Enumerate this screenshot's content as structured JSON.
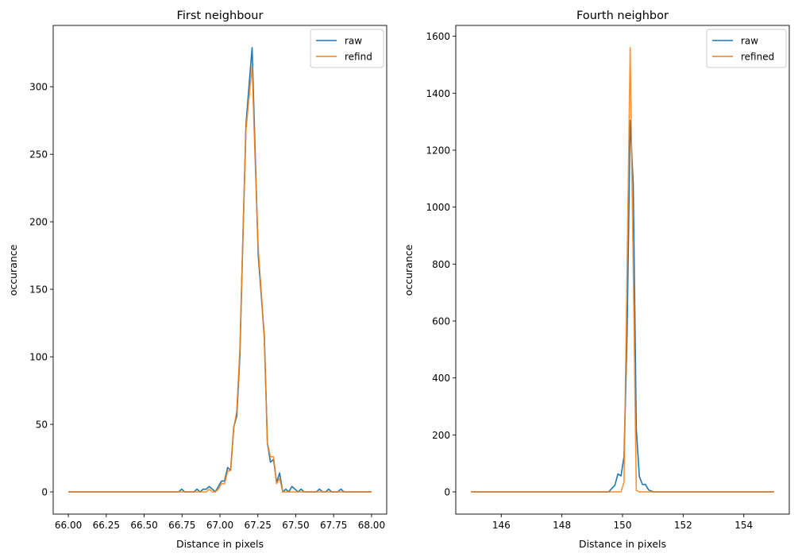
{
  "colors": {
    "raw": "#1f77b4",
    "refined": "#ff7f0e"
  },
  "chart_data": [
    {
      "type": "line",
      "title": "First neighbour",
      "xlabel": "Distance in pixels",
      "ylabel": "occurance",
      "xlim": [
        65.9,
        68.1
      ],
      "ylim": [
        -16.45,
        345.4
      ],
      "x_linspace": {
        "start": 66,
        "stop": 68,
        "num": 100
      },
      "xticks": [
        "66.00",
        "66.25",
        "66.50",
        "66.75",
        "67.00",
        "67.25",
        "67.50",
        "67.75",
        "68.00"
      ],
      "yticks": [
        "0",
        "50",
        "100",
        "150",
        "200",
        "250",
        "300"
      ],
      "grid": false,
      "legend": "top-right",
      "series": [
        {
          "name": "raw",
          "values": [
            0,
            0,
            0,
            0,
            0,
            0,
            0,
            0,
            0,
            0,
            0,
            0,
            0,
            0,
            0,
            0,
            0,
            0,
            0,
            0,
            0,
            0,
            0,
            0,
            0,
            0,
            0,
            0,
            0,
            0,
            0,
            0,
            0,
            0,
            0,
            0,
            0,
            2,
            0,
            0,
            0,
            0,
            2,
            0,
            2,
            2,
            4,
            2,
            0,
            4,
            8,
            8,
            18,
            16,
            48,
            56,
            100,
            188,
            272,
            301,
            329,
            252,
            175,
            145,
            115,
            36,
            22,
            24,
            7,
            14,
            0,
            2,
            0,
            4,
            2,
            0,
            2,
            0,
            0,
            0,
            0,
            0,
            2,
            0,
            0,
            2,
            0,
            0,
            0,
            2,
            0,
            0,
            0,
            0,
            0,
            0,
            0,
            0,
            0,
            0
          ]
        },
        {
          "name": "refind",
          "values": [
            0,
            0,
            0,
            0,
            0,
            0,
            0,
            0,
            0,
            0,
            0,
            0,
            0,
            0,
            0,
            0,
            0,
            0,
            0,
            0,
            0,
            0,
            0,
            0,
            0,
            0,
            0,
            0,
            0,
            0,
            0,
            0,
            0,
            0,
            0,
            0,
            0,
            0,
            0,
            0,
            0,
            0,
            0,
            0,
            0,
            0,
            2,
            0,
            0,
            2,
            6,
            6,
            15,
            16,
            47,
            60,
            105,
            190,
            268,
            292,
            315,
            245,
            180,
            148,
            112,
            36,
            26,
            26,
            6,
            10,
            0,
            0,
            0,
            0,
            0,
            0,
            0,
            0,
            0,
            0,
            0,
            0,
            0,
            0,
            0,
            0,
            0,
            0,
            0,
            0,
            0,
            0,
            0,
            0,
            0,
            0,
            0,
            0,
            0,
            0
          ]
        }
      ]
    },
    {
      "type": "line",
      "title": "Fourth neighbor",
      "xlabel": "Distance in pixels",
      "ylabel": "occurance",
      "xlim": [
        144.5,
        155.5
      ],
      "ylim": [
        -78,
        1638
      ],
      "x_linspace": {
        "start": 145,
        "stop": 155,
        "num": 100
      },
      "xticks": [
        "146",
        "148",
        "150",
        "152",
        "154"
      ],
      "yticks": [
        "0",
        "200",
        "400",
        "600",
        "800",
        "1000",
        "1200",
        "1400",
        "1600"
      ],
      "grid": false,
      "legend": "top-right",
      "series": [
        {
          "name": "raw",
          "values": [
            0,
            0,
            0,
            0,
            0,
            0,
            0,
            0,
            0,
            0,
            0,
            0,
            0,
            0,
            0,
            0,
            0,
            0,
            0,
            0,
            0,
            0,
            0,
            0,
            0,
            0,
            0,
            0,
            0,
            0,
            0,
            0,
            0,
            0,
            0,
            0,
            0,
            0,
            0,
            0,
            0,
            0,
            0,
            0,
            0,
            0,
            12,
            23,
            63,
            56,
            125,
            560,
            1305,
            1080,
            220,
            54,
            26,
            26,
            7,
            2,
            0,
            0,
            0,
            0,
            0,
            0,
            0,
            0,
            0,
            0,
            0,
            0,
            0,
            0,
            0,
            0,
            0,
            0,
            0,
            0,
            0,
            0,
            0,
            0,
            0,
            0,
            0,
            0,
            0,
            0,
            0,
            0,
            0,
            0,
            0,
            0,
            0,
            0,
            0,
            0
          ]
        },
        {
          "name": "refined",
          "values": [
            0,
            0,
            0,
            0,
            0,
            0,
            0,
            0,
            0,
            0,
            0,
            0,
            0,
            0,
            0,
            0,
            0,
            0,
            0,
            0,
            0,
            0,
            0,
            0,
            0,
            0,
            0,
            0,
            0,
            0,
            0,
            0,
            0,
            0,
            0,
            0,
            0,
            0,
            0,
            0,
            0,
            0,
            0,
            0,
            0,
            0,
            0,
            0,
            0,
            0,
            35,
            800,
            1560,
            780,
            5,
            0,
            0,
            0,
            0,
            0,
            0,
            0,
            0,
            0,
            0,
            0,
            0,
            0,
            0,
            0,
            0,
            0,
            0,
            0,
            0,
            0,
            0,
            0,
            0,
            0,
            0,
            0,
            0,
            0,
            0,
            0,
            0,
            0,
            0,
            0,
            0,
            0,
            0,
            0,
            0,
            0,
            0,
            0,
            0,
            0
          ]
        }
      ]
    }
  ]
}
